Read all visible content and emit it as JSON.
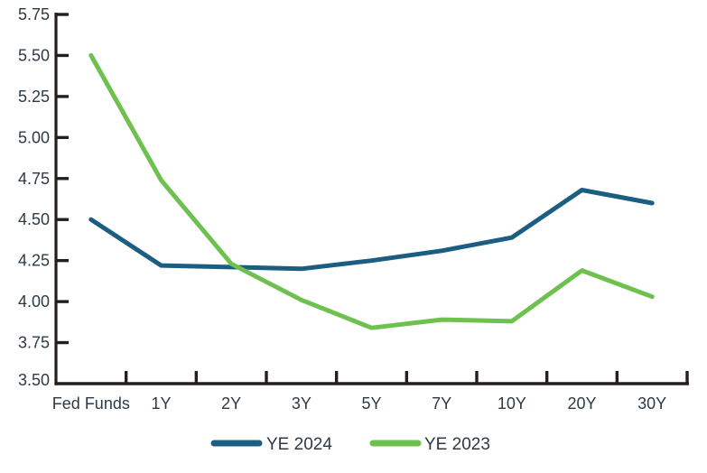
{
  "chart_data": {
    "type": "line",
    "title": "",
    "xlabel": "",
    "ylabel": "",
    "categories": [
      "Fed Funds",
      "1Y",
      "2Y",
      "3Y",
      "5Y",
      "7Y",
      "10Y",
      "20Y",
      "30Y"
    ],
    "series": [
      {
        "name": "YE 2024",
        "color": "#1b5e82",
        "values": [
          4.5,
          4.22,
          4.21,
          4.2,
          4.25,
          4.31,
          4.39,
          4.68,
          4.6
        ]
      },
      {
        "name": "YE 2023",
        "color": "#6ec04f",
        "values": [
          5.5,
          4.74,
          4.23,
          4.01,
          3.84,
          3.89,
          3.88,
          4.19,
          4.03
        ]
      }
    ],
    "ylim": [
      3.5,
      5.75
    ],
    "ytick_step": 0.25,
    "ytick_labels": [
      "3.50",
      "3.75",
      "4.00",
      "4.25",
      "4.50",
      "4.75",
      "5.00",
      "5.25",
      "5.50",
      "5.75"
    ],
    "grid": false,
    "legend_position": "bottom",
    "legend": [
      {
        "label": "YE 2024",
        "color": "#1b5e82"
      },
      {
        "label": "YE 2023",
        "color": "#6ec04f"
      }
    ],
    "axis_color": "#231f20",
    "text_color": "#2d3a46"
  }
}
